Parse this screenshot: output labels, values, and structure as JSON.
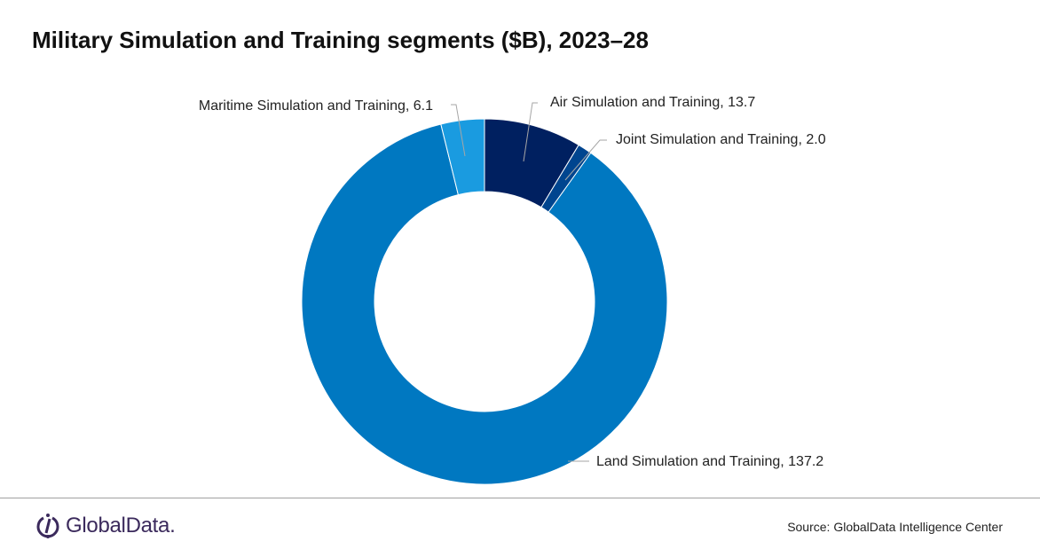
{
  "chart_data": {
    "type": "pie",
    "variant": "donut",
    "title": "Military Simulation and Training segments ($B), 2023–28",
    "slices": [
      {
        "name": "Air Simulation and Training",
        "value": 13.7,
        "label": "Air Simulation and Training, 13.7",
        "color": "#002060"
      },
      {
        "name": "Joint Simulation and Training",
        "value": 2.0,
        "label": "Joint Simulation and Training, 2.0",
        "color": "#00458f"
      },
      {
        "name": "Land Simulation and Training",
        "value": 137.2,
        "label": "Land Simulation and Training, 137.2",
        "color": "#0078c1"
      },
      {
        "name": "Maritime Simulation and Training",
        "value": 6.1,
        "label": "Maritime Simulation and Training, 6.1",
        "color": "#1a9be0"
      }
    ]
  },
  "footer": {
    "logo": "GlobalData.",
    "source": "Source:  GlobalData Intelligence Center"
  }
}
